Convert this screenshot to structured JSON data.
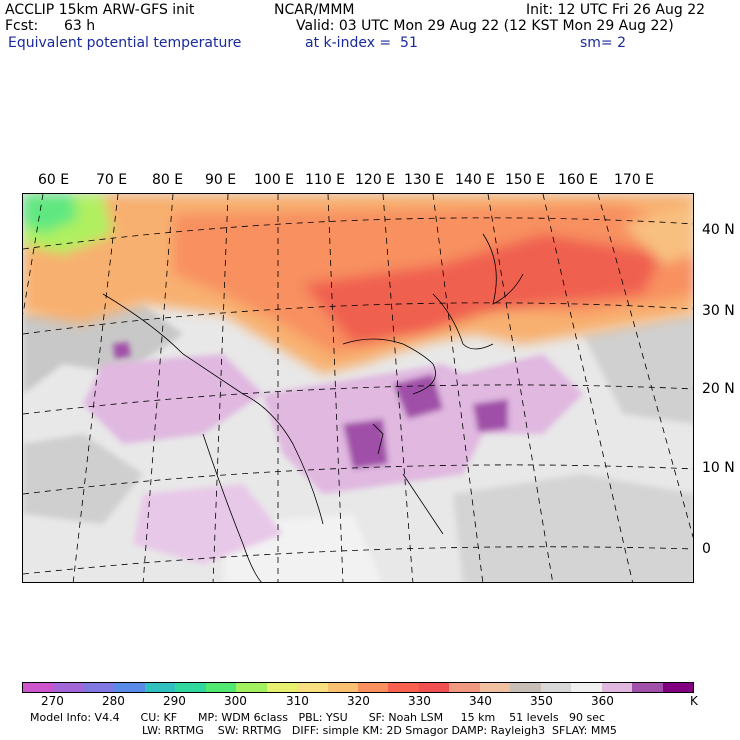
{
  "header": {
    "left1": "ACCLIP 15km ARW-GFS init",
    "left2_label": "Fcst:",
    "left2_value": "63 h",
    "field": "Equivalent potential temperature",
    "center1": "NCAR/MMM",
    "valid": "Valid: 03 UTC Mon 29 Aug 22 (12 KST Mon 29 Aug 22)",
    "init": "Init: 12 UTC Fri 26 Aug 22",
    "level": "at k-index =  51",
    "smooth": "sm= 2"
  },
  "lon_labels": [
    "60 E",
    "70 E",
    "80 E",
    "90 E",
    "100 E",
    "110 E",
    "120 E",
    "130 E",
    "140 E",
    "150 E",
    "160 E",
    "170 E"
  ],
  "lat_labels": [
    "40 N",
    "30 N",
    "20 N",
    "10 N",
    "0"
  ],
  "colorbar": {
    "colors": [
      "#cc55cc",
      "#a266d8",
      "#8077e0",
      "#5a8ae8",
      "#30c0c0",
      "#30d8a0",
      "#50e870",
      "#a0f060",
      "#e8f070",
      "#f8e080",
      "#f8c070",
      "#f89060",
      "#f86050",
      "#f05050",
      "#f09880",
      "#f0c0a0",
      "#c8c0b8",
      "#d8d8d8",
      "#f0f0f0",
      "#e0b8e0",
      "#a050a8",
      "#800080"
    ],
    "labels": [
      "270",
      "280",
      "290",
      "300",
      "310",
      "320",
      "330",
      "340",
      "350",
      "360",
      "K"
    ],
    "unit": "K"
  },
  "model_info": {
    "line1": "Model Info: V4.4      CU: KF      MP: WDM 6class   PBL: YSU      SF: Noah LSM     15 km    51 levels   90 sec",
    "line2": "LW: RRTMG    SW: RRTMG   DIFF: simple KM: 2D Smagor DAMP: Rayleigh3  SFLAY: MM5"
  }
}
